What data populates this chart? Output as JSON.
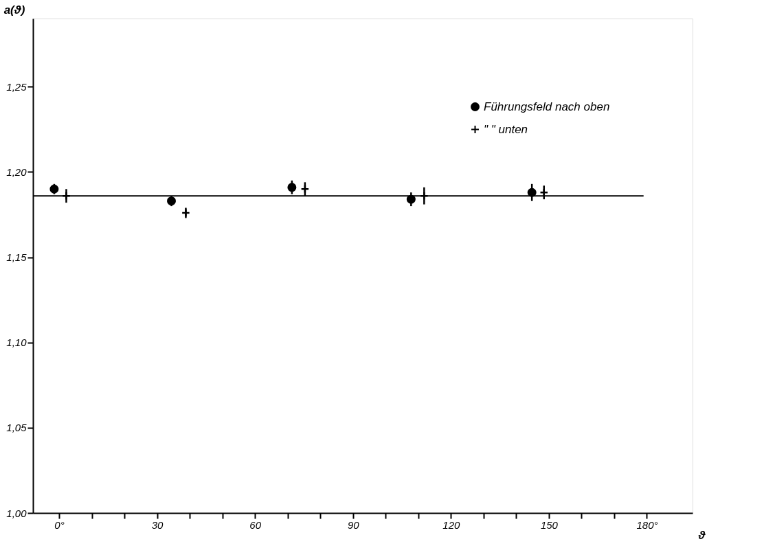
{
  "chart_data": {
    "type": "scatter",
    "xlabel": "ϑ",
    "ylabel": "a(ϑ)",
    "xlim": [
      -8,
      194
    ],
    "ylim": [
      1.0,
      1.29
    ],
    "xticks": [
      {
        "value": 0,
        "label": "0°"
      },
      {
        "value": 10,
        "label": null
      },
      {
        "value": 20,
        "label": null
      },
      30,
      {
        "value": 40,
        "label": null
      },
      {
        "value": 50,
        "label": null
      },
      60,
      {
        "value": 70,
        "label": null
      },
      {
        "value": 80,
        "label": null
      },
      90,
      {
        "value": 100,
        "label": null
      },
      {
        "value": 110,
        "label": null
      },
      120,
      {
        "value": 130,
        "label": null
      },
      {
        "value": 140,
        "label": null
      },
      150,
      {
        "value": 160,
        "label": null
      },
      {
        "value": 170,
        "label": null
      },
      {
        "value": 180,
        "label": "180°"
      }
    ],
    "yticks": [
      {
        "value": 1.0,
        "label": "1,00"
      },
      {
        "value": 1.05,
        "label": "1,05"
      },
      {
        "value": 1.1,
        "label": "1,10"
      },
      {
        "value": 1.15,
        "label": "1,15"
      },
      {
        "value": 1.2,
        "label": "1,20"
      },
      {
        "value": 1.25,
        "label": "1,25"
      }
    ],
    "grid": false,
    "legend": "top right",
    "series": [
      {
        "name": "Führungsfeld nach oben",
        "color": "#000000",
        "marker": "circle",
        "x": [
          -1.5,
          34.4,
          71.3,
          107.8,
          144.8
        ],
        "values": [
          1.19,
          1.183,
          1.191,
          1.184,
          1.188
        ],
        "errors": [
          0.003,
          0.003,
          0.004,
          0.004,
          0.005
        ]
      },
      {
        "name": "\"          \"        unten",
        "color": "#000000",
        "marker": "cross",
        "x": [
          2.2,
          38.8,
          75.3,
          111.8,
          148.5
        ],
        "values": [
          1.186,
          1.176,
          1.19,
          1.186,
          1.188
        ],
        "errors": [
          0.004,
          0.003,
          0.004,
          0.005,
          0.004
        ]
      },
      {
        "type": "line",
        "color": "#000000",
        "line_style": "solid",
        "x": [
          -8,
          179
        ],
        "values": [
          1.186,
          1.186
        ]
      }
    ]
  }
}
